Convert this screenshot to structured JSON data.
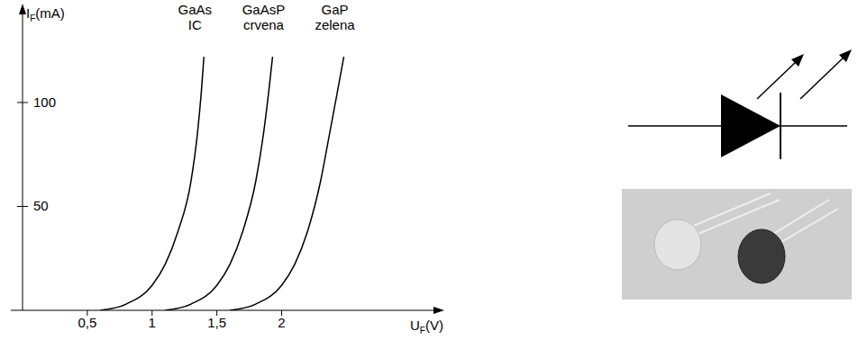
{
  "chart_data": {
    "type": "line",
    "x_label": "UF(V)",
    "y_label": "IF(mA)",
    "xlim": [
      0,
      3.2
    ],
    "ylim": [
      0,
      145
    ],
    "xticks": [
      {
        "value": 0.5,
        "label": "0,5"
      },
      1,
      {
        "value": 1.5,
        "label": "1,5"
      },
      2
    ],
    "yticks": [
      50,
      100
    ],
    "grid": false,
    "series": [
      {
        "name": "GaAs IC",
        "color": "#000000",
        "x": [
          0.6,
          0.8,
          1.0,
          1.1,
          1.2,
          1.3,
          1.35,
          1.38,
          1.4
        ],
        "values": [
          0,
          3,
          12,
          22,
          38,
          62,
          85,
          105,
          122
        ]
      },
      {
        "name": "GaAsP crvena",
        "color": "#000000",
        "x": [
          1.1,
          1.3,
          1.5,
          1.6,
          1.7,
          1.8,
          1.86,
          1.9,
          1.93
        ],
        "values": [
          0,
          3,
          12,
          22,
          38,
          62,
          85,
          105,
          122
        ]
      },
      {
        "name": "GaP zelena",
        "color": "#000000",
        "x": [
          1.6,
          1.8,
          2.0,
          2.1,
          2.2,
          2.3,
          2.37,
          2.43,
          2.48
        ],
        "values": [
          0,
          3,
          12,
          22,
          38,
          62,
          85,
          105,
          122
        ]
      }
    ]
  }
}
